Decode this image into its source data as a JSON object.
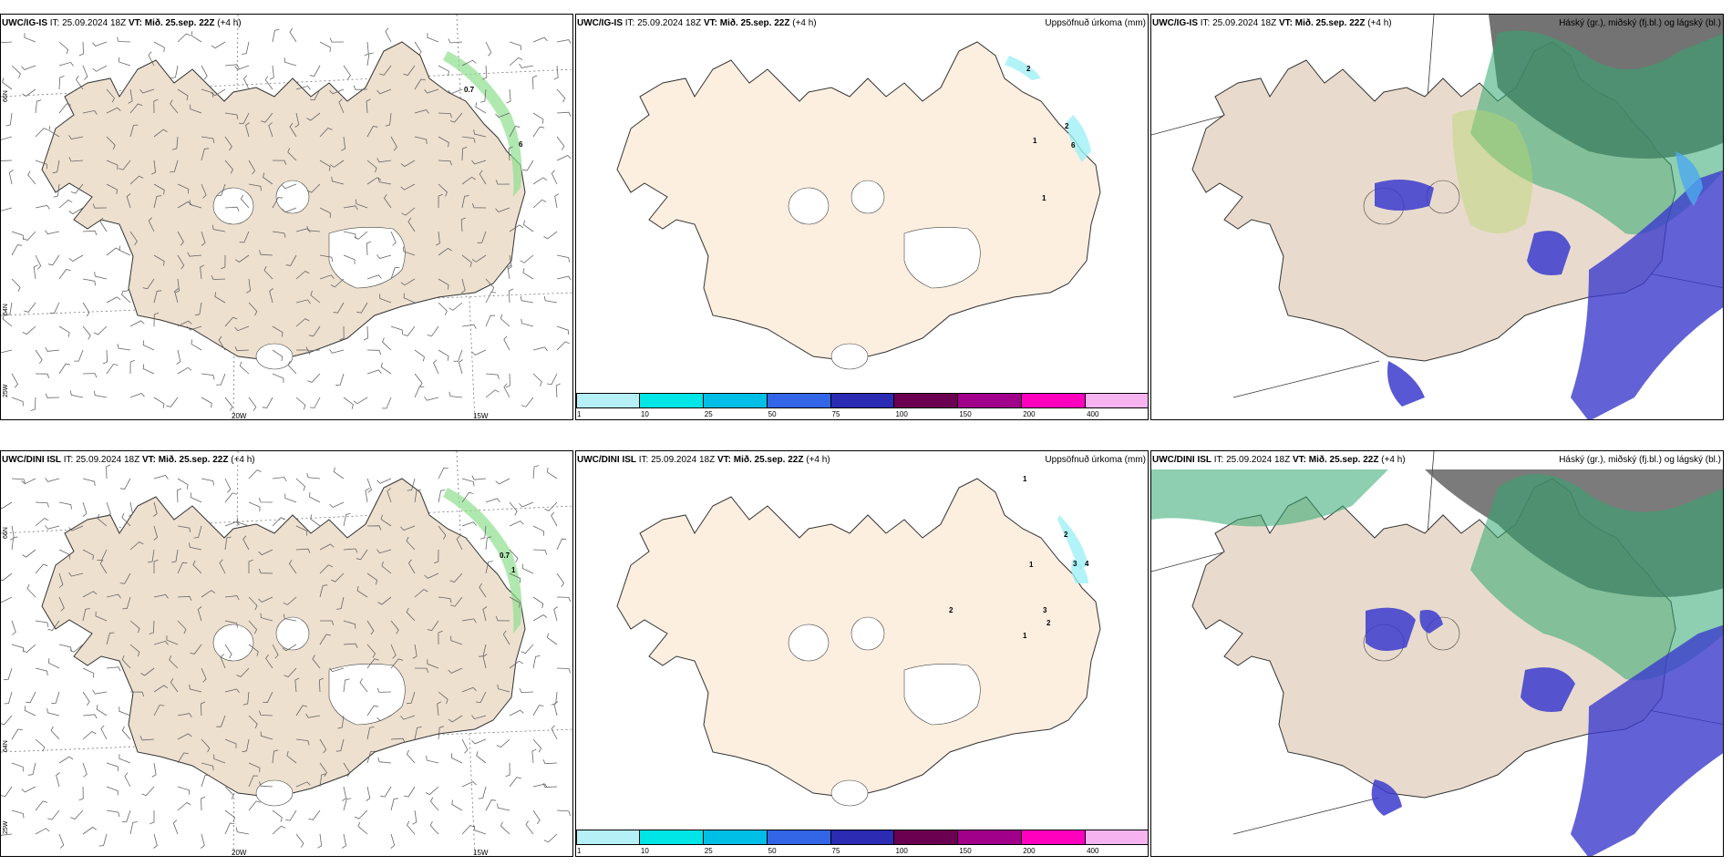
{
  "rows": [
    {
      "model": "UWC/IG-IS",
      "init": "IT: 25.09.2024 18Z",
      "vt_label": "VT:",
      "vt_value": "Mið. 25.sep. 22Z",
      "lead": "(+4 h)",
      "wind_labels": [
        "0.7",
        "6"
      ],
      "precip_labels": [
        "2",
        "2",
        "1",
        "1",
        "6"
      ]
    },
    {
      "model": "UWC/DINI ISL",
      "init": "IT: 25.09.2024 18Z",
      "vt_label": "VT:",
      "vt_value": "Mið. 25.sep. 22Z",
      "lead": "(+4 h)",
      "wind_labels": [
        "0.7",
        "1"
      ],
      "precip_labels": [
        "1",
        "2",
        "1",
        "3",
        "4",
        "2",
        "3",
        "2",
        "1"
      ]
    }
  ],
  "precip_title": "Uppsöfnuð úrkoma (mm)",
  "cloud_title": "Háský (gr.), miðský (fj.bl.) og lágský (bl.)",
  "lon_labels": [
    "20W",
    "15W"
  ],
  "lat_labels": [
    "66N",
    "64N",
    "25W"
  ],
  "colorbar": {
    "ticks": [
      "1",
      "10",
      "25",
      "50",
      "75",
      "100",
      "150",
      "200",
      "400"
    ],
    "colors": [
      "#b4f0f5",
      "#00e6e6",
      "#00bfe6",
      "#3366e6",
      "#2b2bb3",
      "#6b0050",
      "#a0008a",
      "#ff00bf",
      "#f5b4f0"
    ]
  },
  "colors": {
    "land_wind": "#ede0cf",
    "land_precip": "#fdefe0",
    "land_cloud": "#e8dbcd",
    "low_cloud": "#3b3bcc",
    "mid_cloud": "#1fb37a",
    "high_cloud": "#555555"
  }
}
